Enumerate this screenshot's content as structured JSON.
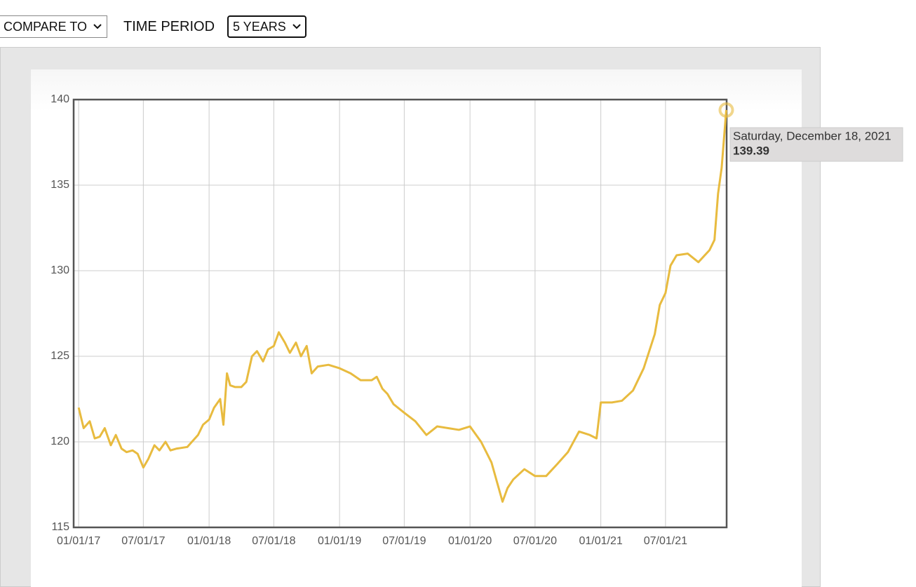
{
  "controls": {
    "compare": "COMPARE TO",
    "period_label": "TIME PERIOD",
    "period": "5 YEARS"
  },
  "chart_data": {
    "type": "line",
    "x": [
      "2017-01-01",
      "2017-01-15",
      "2017-02-01",
      "2017-02-15",
      "2017-03-01",
      "2017-03-15",
      "2017-04-01",
      "2017-04-15",
      "2017-05-01",
      "2017-05-15",
      "2017-06-01",
      "2017-06-15",
      "2017-07-01",
      "2017-07-15",
      "2017-08-01",
      "2017-08-15",
      "2017-09-01",
      "2017-09-15",
      "2017-10-01",
      "2017-11-01",
      "2017-12-01",
      "2017-12-15",
      "2018-01-01",
      "2018-01-15",
      "2018-02-01",
      "2018-02-10",
      "2018-02-20",
      "2018-03-01",
      "2018-03-15",
      "2018-04-01",
      "2018-04-15",
      "2018-05-01",
      "2018-05-15",
      "2018-06-01",
      "2018-06-15",
      "2018-07-01",
      "2018-07-15",
      "2018-08-01",
      "2018-08-15",
      "2018-09-01",
      "2018-09-15",
      "2018-10-01",
      "2018-10-15",
      "2018-11-01",
      "2018-12-01",
      "2019-01-01",
      "2019-02-01",
      "2019-03-01",
      "2019-04-01",
      "2019-04-15",
      "2019-05-01",
      "2019-05-15",
      "2019-06-01",
      "2019-07-01",
      "2019-08-01",
      "2019-09-01",
      "2019-10-01",
      "2019-11-01",
      "2019-12-01",
      "2020-01-01",
      "2020-02-01",
      "2020-03-01",
      "2020-04-01",
      "2020-04-15",
      "2020-05-01",
      "2020-06-01",
      "2020-07-01",
      "2020-08-01",
      "2020-09-01",
      "2020-10-01",
      "2020-11-01",
      "2020-12-01",
      "2020-12-20",
      "2021-01-01",
      "2021-02-01",
      "2021-03-01",
      "2021-04-01",
      "2021-05-01",
      "2021-06-01",
      "2021-06-15",
      "2021-07-01",
      "2021-07-15",
      "2021-08-01",
      "2021-09-01",
      "2021-10-01",
      "2021-11-01",
      "2021-11-15",
      "2021-11-25",
      "2021-12-05",
      "2021-12-18"
    ],
    "series": [
      {
        "color": "#e8bb3f",
        "values": [
          122.0,
          120.8,
          121.2,
          120.2,
          120.3,
          120.8,
          119.8,
          120.4,
          119.6,
          119.4,
          119.5,
          119.3,
          118.5,
          119.0,
          119.8,
          119.5,
          120.0,
          119.5,
          119.6,
          119.7,
          120.4,
          121.0,
          121.3,
          122.0,
          122.5,
          121.0,
          124.0,
          123.3,
          123.2,
          123.2,
          123.5,
          125.0,
          125.3,
          124.7,
          125.4,
          125.6,
          126.4,
          125.8,
          125.2,
          125.8,
          125.0,
          125.6,
          124.0,
          124.4,
          124.5,
          124.3,
          124.0,
          123.6,
          123.6,
          123.8,
          123.1,
          122.8,
          122.2,
          121.7,
          121.2,
          120.4,
          120.9,
          120.8,
          120.7,
          120.9,
          120.0,
          118.8,
          116.5,
          117.3,
          117.8,
          118.4,
          118.0,
          118.0,
          118.7,
          119.4,
          120.6,
          120.4,
          120.2,
          122.3,
          122.3,
          122.4,
          123.0,
          124.3,
          126.3,
          128.0,
          128.7,
          130.3,
          130.9,
          131.0,
          130.5,
          131.2,
          131.8,
          134.5,
          136.0,
          139.39
        ]
      }
    ],
    "xlim": [
      "2016-12-18",
      "2021-12-19"
    ],
    "xticks": [
      {
        "value": "2017-01-01",
        "label": "01/01/17"
      },
      {
        "value": "2017-07-01",
        "label": "07/01/17"
      },
      {
        "value": "2018-01-01",
        "label": "01/01/18"
      },
      {
        "value": "2018-07-01",
        "label": "07/01/18"
      },
      {
        "value": "2019-01-01",
        "label": "01/01/19"
      },
      {
        "value": "2019-07-01",
        "label": "07/01/19"
      },
      {
        "value": "2020-01-01",
        "label": "01/01/20"
      },
      {
        "value": "2020-07-01",
        "label": "07/01/20"
      },
      {
        "value": "2021-01-01",
        "label": "01/01/21"
      },
      {
        "value": "2021-07-01",
        "label": "07/01/21"
      }
    ],
    "ylim": [
      115,
      140
    ],
    "yticks": [
      115,
      120,
      125,
      130,
      135,
      140
    ],
    "grid": true,
    "tooltip": "Saturday, December 18, 2021"
  }
}
